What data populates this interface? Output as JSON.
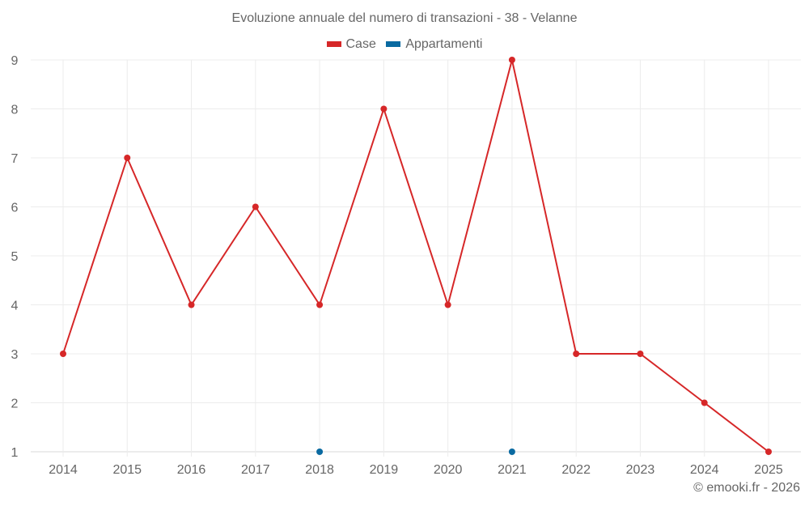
{
  "chart_data": {
    "type": "line",
    "title": "Evoluzione annuale del numero di transazioni - 38 - Velanne",
    "xlabel": "",
    "ylabel": "",
    "categories": [
      "2014",
      "2015",
      "2016",
      "2017",
      "2018",
      "2019",
      "2020",
      "2021",
      "2022",
      "2023",
      "2024",
      "2025"
    ],
    "series": [
      {
        "name": "Case",
        "color": "#d62728",
        "values": [
          3,
          7,
          4,
          6,
          4,
          8,
          4,
          9,
          3,
          3,
          2,
          1
        ]
      },
      {
        "name": "Appartamenti",
        "color": "#0a6aa1",
        "values": [
          null,
          null,
          null,
          null,
          1,
          null,
          null,
          1,
          null,
          null,
          null,
          null
        ]
      }
    ],
    "ylim": [
      1,
      9
    ],
    "yticks": [
      1,
      2,
      3,
      4,
      5,
      6,
      7,
      8,
      9
    ],
    "grid": true,
    "legend_position": "top"
  },
  "credit": "© emooki.fr - 2026"
}
